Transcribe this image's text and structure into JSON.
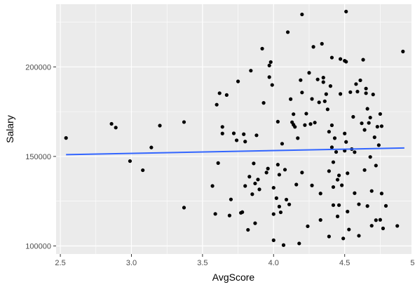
{
  "chart_data": {
    "type": "scatter",
    "xlabel": "AvgScore",
    "ylabel": "Salary",
    "xlim": [
      2.47,
      4.97
    ],
    "ylim": [
      95500,
      235000
    ],
    "x_ticks": [
      2.5,
      3.0,
      3.5,
      4.0,
      4.5,
      5.0
    ],
    "x_tick_labels": [
      "2.5",
      "3.0",
      "3.5",
      "4.0",
      "4.5",
      "5.0"
    ],
    "y_ticks": [
      100000,
      150000,
      200000
    ],
    "y_tick_labels": [
      "100000",
      "150000",
      "200000"
    ],
    "grid": true,
    "colors": {
      "panel": "#ebebeb",
      "grid_major": "#ffffff",
      "point": "#000000",
      "trend_line": "#3366ff"
    },
    "trend_line": {
      "x": [
        2.54,
        4.92
      ],
      "y": [
        151000,
        154700
      ]
    },
    "points": [
      [
        2.54,
        160300
      ],
      [
        2.86,
        168200
      ],
      [
        2.89,
        166100
      ],
      [
        2.99,
        147400
      ],
      [
        3.08,
        142300
      ],
      [
        3.14,
        155000
      ],
      [
        3.2,
        167200
      ],
      [
        3.37,
        169200
      ],
      [
        3.37,
        121400
      ],
      [
        3.57,
        133500
      ],
      [
        3.59,
        117900
      ],
      [
        3.6,
        178900
      ],
      [
        3.61,
        146300
      ],
      [
        3.62,
        185300
      ],
      [
        3.64,
        166500
      ],
      [
        3.64,
        162800
      ],
      [
        3.67,
        184300
      ],
      [
        3.69,
        117000
      ],
      [
        3.7,
        126000
      ],
      [
        3.72,
        162900
      ],
      [
        3.74,
        159000
      ],
      [
        3.75,
        191900
      ],
      [
        3.77,
        118500
      ],
      [
        3.78,
        118900
      ],
      [
        3.79,
        162400
      ],
      [
        3.8,
        158300
      ],
      [
        3.8,
        133500
      ],
      [
        3.82,
        109000
      ],
      [
        3.83,
        138700
      ],
      [
        3.84,
        197900
      ],
      [
        3.85,
        128900
      ],
      [
        3.86,
        146100
      ],
      [
        3.87,
        134900
      ],
      [
        3.87,
        112700
      ],
      [
        3.88,
        161800
      ],
      [
        3.89,
        137100
      ],
      [
        3.9,
        131600
      ],
      [
        3.92,
        210200
      ],
      [
        3.93,
        179900
      ],
      [
        3.95,
        141000
      ],
      [
        3.96,
        143200
      ],
      [
        3.97,
        200800
      ],
      [
        3.97,
        194300
      ],
      [
        3.98,
        202700
      ],
      [
        3.99,
        189900
      ],
      [
        4.0,
        132500
      ],
      [
        4.0,
        117800
      ],
      [
        4.0,
        103200
      ],
      [
        4.02,
        126700
      ],
      [
        4.03,
        169400
      ],
      [
        4.03,
        145400
      ],
      [
        4.04,
        139800
      ],
      [
        4.04,
        122000
      ],
      [
        4.05,
        118800
      ],
      [
        4.06,
        157100
      ],
      [
        4.07,
        100500
      ],
      [
        4.08,
        142600
      ],
      [
        4.09,
        125900
      ],
      [
        4.1,
        219400
      ],
      [
        4.11,
        123200
      ],
      [
        4.12,
        182000
      ],
      [
        4.13,
        169100
      ],
      [
        4.14,
        173600
      ],
      [
        4.14,
        167700
      ],
      [
        4.15,
        166500
      ],
      [
        4.16,
        134300
      ],
      [
        4.17,
        160200
      ],
      [
        4.18,
        101400
      ],
      [
        4.19,
        192600
      ],
      [
        4.2,
        229300
      ],
      [
        4.2,
        185700
      ],
      [
        4.2,
        141000
      ],
      [
        4.22,
        167500
      ],
      [
        4.23,
        173900
      ],
      [
        4.24,
        111000
      ],
      [
        4.25,
        196700
      ],
      [
        4.26,
        168100
      ],
      [
        4.27,
        182100
      ],
      [
        4.27,
        133800
      ],
      [
        4.28,
        211200
      ],
      [
        4.29,
        168900
      ],
      [
        4.31,
        193000
      ],
      [
        4.32,
        180200
      ],
      [
        4.33,
        129300
      ],
      [
        4.33,
        114500
      ],
      [
        4.34,
        212900
      ],
      [
        4.35,
        194000
      ],
      [
        4.35,
        191500
      ],
      [
        4.36,
        180800
      ],
      [
        4.37,
        184800
      ],
      [
        4.38,
        176300
      ],
      [
        4.39,
        163800
      ],
      [
        4.39,
        141800
      ],
      [
        4.39,
        105300
      ],
      [
        4.4,
        189300
      ],
      [
        4.41,
        205200
      ],
      [
        4.41,
        167400
      ],
      [
        4.41,
        155100
      ],
      [
        4.42,
        146800
      ],
      [
        4.42,
        132900
      ],
      [
        4.42,
        122800
      ],
      [
        4.43,
        160200
      ],
      [
        4.44,
        152500
      ],
      [
        4.45,
        137000
      ],
      [
        4.45,
        116500
      ],
      [
        4.46,
        139400
      ],
      [
        4.46,
        122800
      ],
      [
        4.47,
        204400
      ],
      [
        4.47,
        184900
      ],
      [
        4.48,
        133900
      ],
      [
        4.49,
        104200
      ],
      [
        4.5,
        203400
      ],
      [
        4.5,
        162800
      ],
      [
        4.5,
        153200
      ],
      [
        4.51,
        230900
      ],
      [
        4.51,
        202900
      ],
      [
        4.51,
        158100
      ],
      [
        4.52,
        140600
      ],
      [
        4.52,
        119200
      ],
      [
        4.53,
        109200
      ],
      [
        4.54,
        185900
      ],
      [
        4.55,
        154100
      ],
      [
        4.56,
        172100
      ],
      [
        4.57,
        152400
      ],
      [
        4.57,
        129500
      ],
      [
        4.58,
        190400
      ],
      [
        4.59,
        186200
      ],
      [
        4.6,
        123300
      ],
      [
        4.6,
        105700
      ],
      [
        4.61,
        192500
      ],
      [
        4.62,
        168500
      ],
      [
        4.63,
        204000
      ],
      [
        4.64,
        164800
      ],
      [
        4.64,
        142400
      ],
      [
        4.65,
        187900
      ],
      [
        4.65,
        185300
      ],
      [
        4.66,
        176600
      ],
      [
        4.66,
        122300
      ],
      [
        4.67,
        168700
      ],
      [
        4.68,
        171700
      ],
      [
        4.68,
        149700
      ],
      [
        4.69,
        130700
      ],
      [
        4.69,
        111300
      ],
      [
        4.7,
        184600
      ],
      [
        4.71,
        160700
      ],
      [
        4.72,
        144900
      ],
      [
        4.72,
        114400
      ],
      [
        4.73,
        166600
      ],
      [
        4.74,
        156300
      ],
      [
        4.75,
        173700
      ],
      [
        4.75,
        114600
      ],
      [
        4.76,
        166900
      ],
      [
        4.76,
        129300
      ],
      [
        4.77,
        109800
      ],
      [
        4.79,
        122400
      ],
      [
        4.87,
        111200
      ],
      [
        4.91,
        208600
      ]
    ]
  }
}
